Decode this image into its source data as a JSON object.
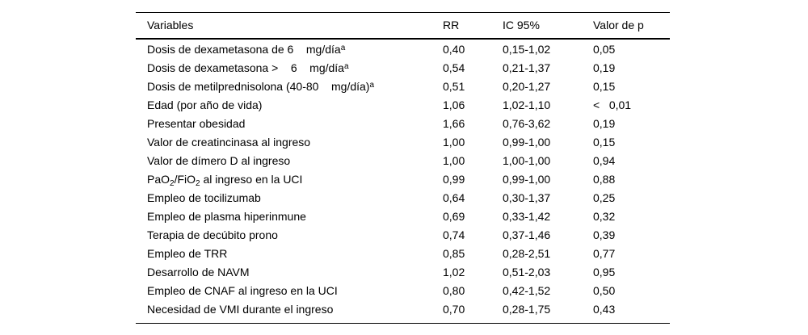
{
  "colors": {
    "background": "#ffffff",
    "text": "#000000",
    "rule": "#000000"
  },
  "table": {
    "columns": {
      "variables": "Variables",
      "rr": "RR",
      "ic": "IC 95%",
      "p": "Valor de p"
    },
    "rows": [
      {
        "variable": [
          {
            "t": "Dosis de dexametasona de 6    mg/día"
          },
          {
            "sup": "a"
          }
        ],
        "rr": "0,40",
        "ic": "0,15-1,02",
        "p": "0,05"
      },
      {
        "variable": [
          {
            "t": "Dosis de dexametasona >    6    mg/día"
          },
          {
            "sup": "a"
          }
        ],
        "rr": "0,54",
        "ic": "0,21-1,37",
        "p": "0,19"
      },
      {
        "variable": [
          {
            "t": "Dosis de metilprednisolona (40-80    mg/día)"
          },
          {
            "sup": "a"
          }
        ],
        "rr": "0,51",
        "ic": "0,20-1,27",
        "p": "0,15"
      },
      {
        "variable": [
          {
            "t": "Edad (por año de vida)"
          }
        ],
        "rr": "1,06",
        "ic": "1,02-1,10",
        "p": "<   0,01"
      },
      {
        "variable": [
          {
            "t": "Presentar obesidad"
          }
        ],
        "rr": "1,66",
        "ic": "0,76-3,62",
        "p": "0,19"
      },
      {
        "variable": [
          {
            "t": "Valor de creatincinasa al ingreso"
          }
        ],
        "rr": "1,00",
        "ic": "0,99-1,00",
        "p": "0,15"
      },
      {
        "variable": [
          {
            "t": "Valor de dímero D al ingreso"
          }
        ],
        "rr": "1,00",
        "ic": "1,00-1,00",
        "p": "0,94"
      },
      {
        "variable": [
          {
            "t": "PaO"
          },
          {
            "sub": "2"
          },
          {
            "t": "/FiO"
          },
          {
            "sub": "2"
          },
          {
            "t": " al ingreso en la UCI"
          }
        ],
        "rr": "0,99",
        "ic": "0,99-1,00",
        "p": "0,88"
      },
      {
        "variable": [
          {
            "t": "Empleo de tocilizumab"
          }
        ],
        "rr": "0,64",
        "ic": "0,30-1,37",
        "p": "0,25"
      },
      {
        "variable": [
          {
            "t": "Empleo de plasma hiperinmune"
          }
        ],
        "rr": "0,69",
        "ic": "0,33-1,42",
        "p": "0,32"
      },
      {
        "variable": [
          {
            "t": "Terapia de decúbito prono"
          }
        ],
        "rr": "0,74",
        "ic": "0,37-1,46",
        "p": "0,39"
      },
      {
        "variable": [
          {
            "t": "Empleo de TRR"
          }
        ],
        "rr": "0,85",
        "ic": "0,28-2,51",
        "p": "0,77"
      },
      {
        "variable": [
          {
            "t": "Desarrollo de NAVM"
          }
        ],
        "rr": "1,02",
        "ic": "0,51-2,03",
        "p": "0,95"
      },
      {
        "variable": [
          {
            "t": "Empleo de CNAF al ingreso en la UCI"
          }
        ],
        "rr": "0,80",
        "ic": "0,42-1,52",
        "p": "0,50"
      },
      {
        "variable": [
          {
            "t": "Necesidad de VMI durante el ingreso"
          }
        ],
        "rr": "0,70",
        "ic": "0,28-1,75",
        "p": "0,43"
      }
    ]
  }
}
